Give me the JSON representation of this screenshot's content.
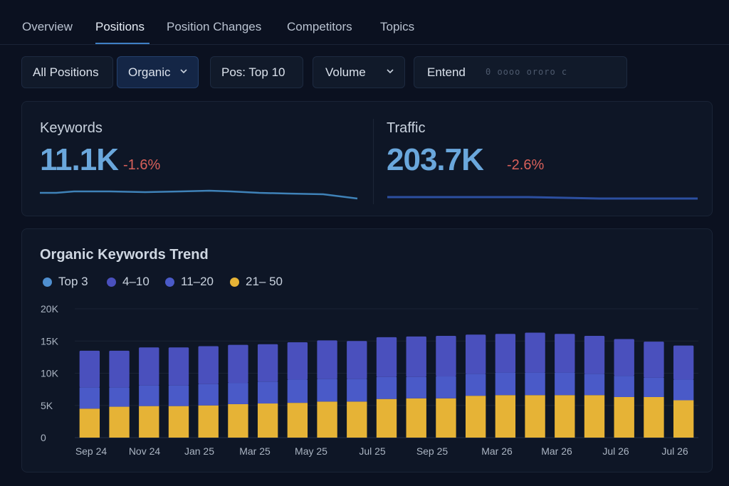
{
  "tabs": [
    "Overview",
    "Positions",
    "Position Changes",
    "Competitors",
    "Topics"
  ],
  "filters": {
    "all_positions": "All Positions",
    "organic": "Organic",
    "pos": "Pos: Top 10",
    "volume": "Volume",
    "extend": "Entend",
    "extend_dots": "0 oooo ororo c"
  },
  "metrics": {
    "keywords": {
      "label": "Keywords",
      "value": "11.1K",
      "change": "-1.6%"
    },
    "traffic": {
      "label": "Traffic",
      "value": "203.7K",
      "change": "-2.6%"
    }
  },
  "colors": {
    "top3": "#4f8fd0",
    "p4_10": "#4a50bd",
    "p11_20": "#4a5ac8",
    "p21_50": "#e6b336",
    "negative": "#d8605a",
    "accent": "#3f7fc4"
  },
  "chart_data": {
    "type": "bar",
    "stacked": true,
    "title": "Organic Keywords Trend",
    "legend": [
      {
        "name": "Top 3",
        "color": "#4f8fd0"
      },
      {
        "name": "4–10",
        "color": "#4a50bd"
      },
      {
        "name": "11–20",
        "color": "#4a5ac8"
      },
      {
        "name": "21– 50",
        "color": "#e6b336"
      }
    ],
    "ylim": [
      0,
      20000
    ],
    "yticks": [
      {
        "value": 0,
        "label": "0"
      },
      {
        "value": 5000,
        "label": "5K"
      },
      {
        "value": 10000,
        "label": "10K"
      },
      {
        "value": 15000,
        "label": "15K"
      },
      {
        "value": 20000,
        "label": "20K"
      }
    ],
    "xtick_labels": [
      "Sep 24",
      "Nov 24",
      "Jan 25",
      "Mar 25",
      "May 25",
      "Jul 25",
      "Sep 25",
      "Mar 26",
      "Mar 26",
      "Jul 26",
      "Jul 26"
    ],
    "series": [
      {
        "name": "21– 50",
        "values": [
          4500,
          4800,
          4900,
          4900,
          5000,
          5200,
          5300,
          5400,
          5600,
          5600,
          6000,
          6100,
          6100,
          6500,
          6600,
          6600,
          6600,
          6600,
          6300,
          6300,
          5800
        ]
      },
      {
        "name": "11–20",
        "values": [
          3300,
          3000,
          3200,
          3200,
          3300,
          3300,
          3400,
          3600,
          3500,
          3500,
          3400,
          3300,
          3400,
          3400,
          3500,
          3500,
          3500,
          3300,
          3300,
          3000,
          3200
        ]
      },
      {
        "name": "4–10",
        "values": [
          5700,
          5700,
          5900,
          5900,
          5900,
          5900,
          5800,
          5800,
          6000,
          5900,
          6200,
          6300,
          6300,
          6100,
          6000,
          6200,
          6000,
          5900,
          5700,
          5600,
          5300
        ]
      }
    ]
  }
}
